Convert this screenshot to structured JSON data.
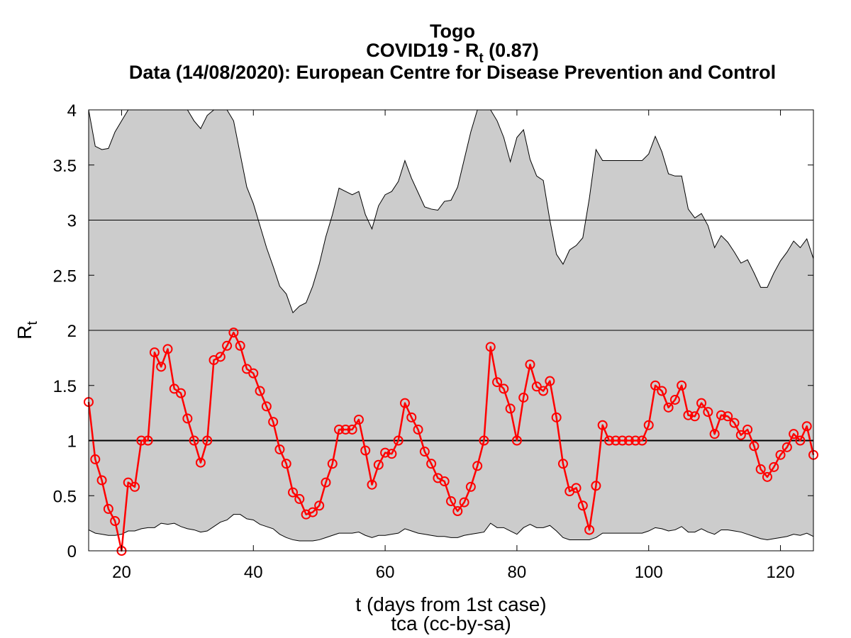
{
  "chart_data": {
    "type": "line",
    "title_lines": [
      "Togo",
      "COVID19 - R",
      "Data (14/08/2020): European Centre for Disease Prevention and Control"
    ],
    "title_rt_sub": "t",
    "title_rt_value": " (0.87)",
    "xlabel": "t (days from 1st case)",
    "caption": "tca (cc-by-sa)",
    "ylabel": "R",
    "ylabel_sub": "t",
    "xlim": [
      15,
      125
    ],
    "ylim": [
      0,
      4
    ],
    "xticks": [
      20,
      40,
      60,
      80,
      100,
      120
    ],
    "yticks": [
      0,
      0.5,
      1,
      1.5,
      2,
      2.5,
      3,
      3.5,
      4
    ],
    "ytick_labels": [
      "0",
      "0.5",
      "1",
      "1.5",
      "2",
      "2.5",
      "3",
      "3.5",
      "4"
    ],
    "hlines": [
      1,
      2,
      3
    ],
    "colors": {
      "band": "#cccccc",
      "series": "#ff0000",
      "axis": "#000000"
    },
    "band": {
      "x": [
        15,
        16,
        17,
        18,
        19,
        20,
        21,
        22,
        23,
        24,
        25,
        26,
        27,
        28,
        29,
        30,
        31,
        32,
        33,
        34,
        35,
        36,
        37,
        38,
        39,
        40,
        41,
        42,
        43,
        44,
        45,
        46,
        47,
        48,
        49,
        50,
        51,
        52,
        53,
        54,
        55,
        56,
        57,
        58,
        59,
        60,
        61,
        62,
        63,
        64,
        65,
        66,
        67,
        68,
        69,
        70,
        71,
        72,
        73,
        74,
        75,
        76,
        77,
        78,
        79,
        80,
        81,
        82,
        83,
        84,
        85,
        86,
        87,
        88,
        89,
        90,
        91,
        92,
        93,
        94,
        95,
        96,
        97,
        98,
        99,
        100,
        101,
        102,
        103,
        104,
        105,
        106,
        107,
        108,
        109,
        110,
        111,
        112,
        113,
        114,
        115,
        116,
        117,
        118,
        119,
        120,
        121,
        122,
        123,
        124,
        125
      ],
      "upper": [
        4.0,
        3.67,
        3.64,
        3.65,
        3.8,
        3.9,
        4.0,
        4.0,
        4.0,
        4.0,
        4.0,
        4.0,
        4.0,
        4.0,
        4.0,
        4.0,
        3.9,
        3.83,
        3.95,
        4.0,
        4.0,
        4.0,
        3.9,
        3.6,
        3.3,
        3.15,
        2.95,
        2.75,
        2.58,
        2.4,
        2.33,
        2.16,
        2.22,
        2.25,
        2.4,
        2.6,
        2.85,
        3.05,
        3.29,
        3.26,
        3.23,
        3.26,
        3.05,
        2.92,
        3.13,
        3.23,
        3.26,
        3.35,
        3.54,
        3.38,
        3.25,
        3.12,
        3.1,
        3.09,
        3.17,
        3.18,
        3.3,
        3.55,
        3.8,
        4.0,
        4.0,
        4.0,
        3.9,
        3.75,
        3.53,
        3.75,
        3.82,
        3.55,
        3.4,
        3.36,
        3.0,
        2.69,
        2.6,
        2.73,
        2.77,
        2.84,
        3.2,
        3.64,
        3.54,
        3.54,
        3.54,
        3.54,
        3.54,
        3.54,
        3.54,
        3.6,
        3.76,
        3.62,
        3.42,
        3.4,
        3.4,
        3.1,
        3.02,
        3.06,
        2.95,
        2.75,
        2.86,
        2.8,
        2.71,
        2.61,
        2.64,
        2.52,
        2.39,
        2.39,
        2.52,
        2.63,
        2.71,
        2.81,
        2.75,
        2.83,
        2.65
      ],
      "lower": [
        0.19,
        0.16,
        0.15,
        0.14,
        0.14,
        0.15,
        0.18,
        0.18,
        0.2,
        0.21,
        0.21,
        0.25,
        0.24,
        0.25,
        0.22,
        0.2,
        0.19,
        0.17,
        0.18,
        0.22,
        0.26,
        0.28,
        0.33,
        0.33,
        0.29,
        0.28,
        0.24,
        0.22,
        0.2,
        0.15,
        0.12,
        0.1,
        0.09,
        0.09,
        0.09,
        0.1,
        0.12,
        0.14,
        0.16,
        0.16,
        0.16,
        0.17,
        0.14,
        0.12,
        0.14,
        0.14,
        0.15,
        0.16,
        0.2,
        0.18,
        0.16,
        0.15,
        0.14,
        0.13,
        0.13,
        0.12,
        0.12,
        0.14,
        0.15,
        0.16,
        0.17,
        0.25,
        0.21,
        0.21,
        0.18,
        0.15,
        0.21,
        0.24,
        0.21,
        0.21,
        0.23,
        0.18,
        0.12,
        0.1,
        0.1,
        0.1,
        0.1,
        0.12,
        0.16,
        0.16,
        0.16,
        0.16,
        0.16,
        0.16,
        0.16,
        0.18,
        0.21,
        0.2,
        0.18,
        0.19,
        0.22,
        0.17,
        0.17,
        0.2,
        0.17,
        0.15,
        0.19,
        0.19,
        0.18,
        0.17,
        0.15,
        0.13,
        0.11,
        0.1,
        0.11,
        0.12,
        0.13,
        0.15,
        0.14,
        0.16,
        0.13
      ]
    },
    "series": [
      {
        "x": [
          15,
          16,
          17,
          18,
          19,
          20,
          21,
          22,
          23,
          24,
          25,
          26,
          27,
          28,
          29,
          30,
          31,
          32,
          33,
          34,
          35,
          36,
          37,
          38,
          39,
          40,
          41,
          42,
          43,
          44,
          45,
          46,
          47,
          48,
          49,
          50,
          51,
          52,
          53,
          54,
          55,
          56,
          57,
          58,
          59,
          60,
          61,
          62,
          63,
          64,
          65,
          66,
          67,
          68,
          69,
          70,
          71,
          72,
          73,
          74,
          75,
          76,
          77,
          78,
          79,
          80,
          81,
          82,
          83,
          84,
          85,
          86,
          87,
          88,
          89,
          90,
          91,
          92,
          93,
          94,
          95,
          96,
          97,
          98,
          99,
          100,
          101,
          102,
          103,
          104,
          105,
          106,
          107,
          108,
          109,
          110,
          111,
          112,
          113,
          114,
          115,
          116,
          117,
          118,
          119,
          120,
          121,
          122,
          123,
          124,
          125
        ],
        "values": [
          1.35,
          0.83,
          0.64,
          0.38,
          0.27,
          0.0,
          0.62,
          0.58,
          1.0,
          1.0,
          1.8,
          1.67,
          1.83,
          1.47,
          1.43,
          1.2,
          1.0,
          0.8,
          1.0,
          1.73,
          1.76,
          1.86,
          1.98,
          1.86,
          1.65,
          1.61,
          1.45,
          1.31,
          1.17,
          0.92,
          0.79,
          0.53,
          0.47,
          0.33,
          0.35,
          0.41,
          0.62,
          0.79,
          1.1,
          1.1,
          1.1,
          1.19,
          0.91,
          0.6,
          0.78,
          0.89,
          0.88,
          1.0,
          1.34,
          1.21,
          1.1,
          0.9,
          0.79,
          0.66,
          0.63,
          0.45,
          0.36,
          0.44,
          0.58,
          0.77,
          1.0,
          1.85,
          1.53,
          1.47,
          1.29,
          1.0,
          1.39,
          1.69,
          1.49,
          1.45,
          1.54,
          1.21,
          0.79,
          0.54,
          0.57,
          0.41,
          0.19,
          0.59,
          1.14,
          1.0,
          1.0,
          1.0,
          1.0,
          1.0,
          1.0,
          1.14,
          1.5,
          1.45,
          1.3,
          1.37,
          1.5,
          1.23,
          1.22,
          1.34,
          1.26,
          1.06,
          1.23,
          1.22,
          1.16,
          1.05,
          1.1,
          0.95,
          0.74,
          0.67,
          0.76,
          0.87,
          0.94,
          1.06,
          1.0,
          1.13,
          0.87
        ]
      }
    ]
  }
}
